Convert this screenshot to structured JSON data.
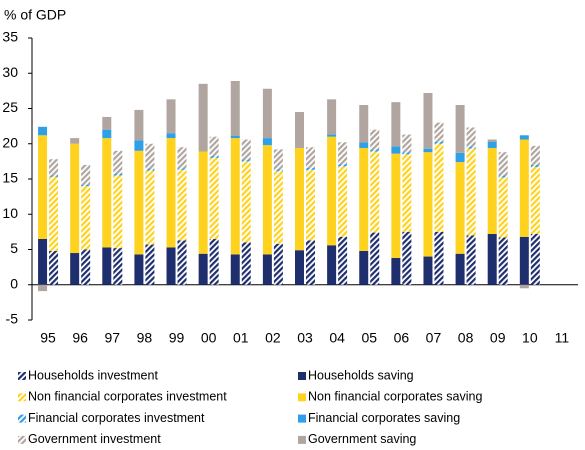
{
  "chart_data": {
    "type": "bar",
    "stacked": true,
    "y_label": "% of GDP",
    "categories": [
      "95",
      "96",
      "97",
      "98",
      "99",
      "00",
      "01",
      "02",
      "03",
      "04",
      "05",
      "06",
      "07",
      "08",
      "09",
      "10",
      "11"
    ],
    "ylim": [
      -5,
      35
    ],
    "yticks": [
      -5,
      0,
      5,
      10,
      15,
      20,
      25,
      30,
      35
    ],
    "series": [
      {
        "name": "Households investment",
        "color": "#1f2f6e",
        "pattern": "hatched",
        "stack": "investment",
        "values": [
          4.8,
          5.0,
          5.2,
          5.7,
          6.3,
          6.5,
          6.0,
          5.8,
          6.3,
          6.8,
          7.4,
          7.5,
          7.5,
          7.0,
          6.7,
          7.2,
          null
        ]
      },
      {
        "name": "Households saving",
        "color": "#1f2f6e",
        "pattern": "solid",
        "stack": "saving",
        "values": [
          6.5,
          4.5,
          5.3,
          4.3,
          5.3,
          4.4,
          4.3,
          4.3,
          4.9,
          5.6,
          4.8,
          3.8,
          4.0,
          4.4,
          7.2,
          6.8,
          null
        ]
      },
      {
        "name": "Non financial corporates investment",
        "color": "#ffd21f",
        "pattern": "hatched",
        "stack": "investment",
        "values": [
          10.5,
          9.0,
          10.3,
          10.5,
          10.0,
          11.5,
          11.5,
          10.3,
          10.0,
          10.0,
          11.5,
          11.0,
          12.5,
          12.3,
          8.5,
          9.5,
          null
        ]
      },
      {
        "name": "Non financial corporates saving",
        "color": "#ffd21f",
        "pattern": "solid",
        "stack": "saving",
        "values": [
          14.7,
          15.5,
          15.5,
          14.7,
          15.5,
          14.5,
          16.5,
          15.5,
          14.5,
          15.4,
          14.6,
          14.8,
          14.8,
          13.0,
          12.2,
          13.8,
          null
        ]
      },
      {
        "name": "Financial corporates investment",
        "color": "#2fa0e6",
        "pattern": "hatched",
        "stack": "investment",
        "values": [
          0.2,
          0.2,
          0.3,
          0.3,
          0.2,
          0.3,
          0.3,
          0.3,
          0.3,
          0.3,
          0.3,
          0.3,
          0.3,
          0.3,
          0.3,
          0.3,
          null
        ]
      },
      {
        "name": "Financial corporates saving",
        "color": "#2fa0e6",
        "pattern": "solid",
        "stack": "saving",
        "values": [
          1.2,
          0,
          1.2,
          1.5,
          0.7,
          0,
          0.3,
          1.0,
          0,
          0.3,
          0.8,
          1.0,
          0.5,
          1.3,
          0.9,
          0.6,
          null
        ]
      },
      {
        "name": "Government investment",
        "color": "#b0a59f",
        "pattern": "hatched",
        "stack": "investment",
        "values": [
          2.3,
          2.8,
          3.2,
          3.5,
          3.0,
          2.7,
          2.8,
          2.8,
          2.9,
          3.1,
          2.8,
          2.5,
          2.7,
          2.7,
          3.3,
          2.7,
          null
        ]
      },
      {
        "name": "Government saving",
        "color": "#b0a59f",
        "pattern": "solid",
        "stack": "saving",
        "values": [
          -0.9,
          0.8,
          1.8,
          4.3,
          4.8,
          9.6,
          7.8,
          7.0,
          5.1,
          5.0,
          5.3,
          6.3,
          7.9,
          6.8,
          0.3,
          -0.5,
          null
        ]
      }
    ]
  }
}
